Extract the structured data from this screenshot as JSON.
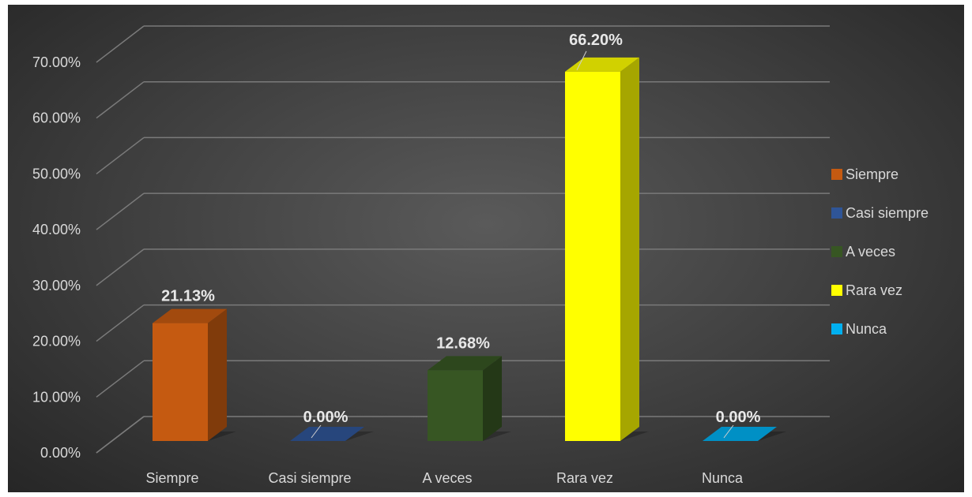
{
  "chart_data": {
    "type": "bar",
    "title": "",
    "xlabel": "",
    "ylabel": "",
    "categories": [
      "Siempre",
      "Casi siempre",
      "A veces",
      "Rara vez",
      "Nunca"
    ],
    "values": [
      21.13,
      0.0,
      12.68,
      66.2,
      0.0
    ],
    "value_labels": [
      "21.13%",
      "0.00%",
      "12.68%",
      "66.20%",
      "0.00%"
    ],
    "y_ticks": [
      "0.00%",
      "10.00%",
      "20.00%",
      "30.00%",
      "40.00%",
      "50.00%",
      "60.00%",
      "70.00%"
    ],
    "ylim": [
      0,
      70
    ],
    "grid": true,
    "legend_position": "right",
    "legend": [
      "Siempre",
      "Casi siempre",
      "A veces",
      "Rara vez",
      "Nunca"
    ],
    "colors": [
      "#c55a11",
      "#2f5597",
      "#375623",
      "#ffff00",
      "#00b0f0"
    ],
    "style": "3d-column"
  }
}
